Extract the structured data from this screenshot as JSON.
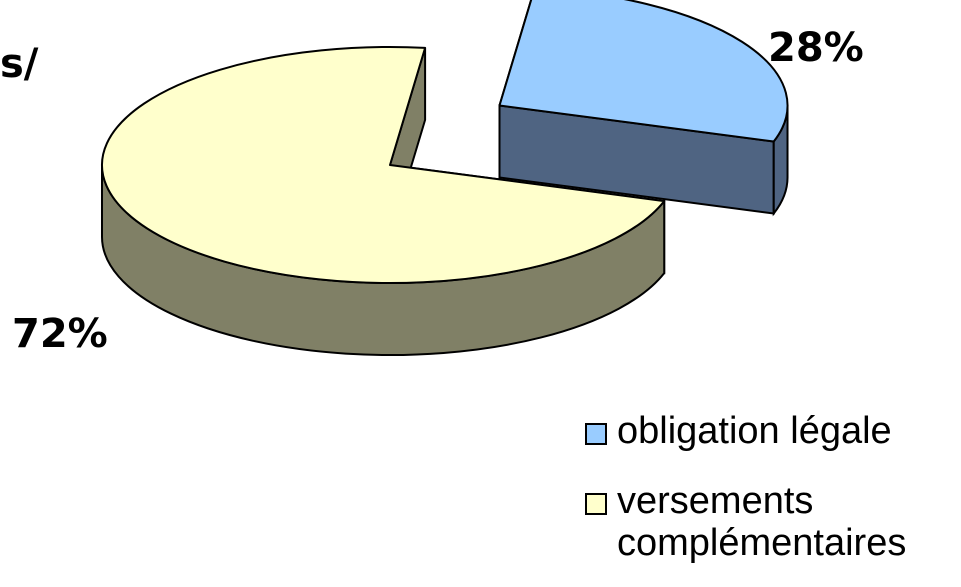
{
  "title_fragment": "s/",
  "chart_data": {
    "type": "pie",
    "style": "3d-exploded",
    "categories": [
      "obligation légale",
      "versements complémentaires"
    ],
    "values": [
      28,
      72
    ],
    "labels": [
      "28%",
      "72%"
    ],
    "legend": "right-bottom",
    "colors": {
      "obligation_top": "#99CCFF",
      "obligation_side": "#4F6482",
      "versements_top": "#FFFFCC",
      "versements_side": "#808066",
      "outline": "#000000"
    }
  },
  "legend": {
    "items": [
      {
        "label": "obligation légale",
        "color": "#99CCFF"
      },
      {
        "label": "versements complémentaires",
        "color": "#FFFFCC"
      }
    ]
  }
}
